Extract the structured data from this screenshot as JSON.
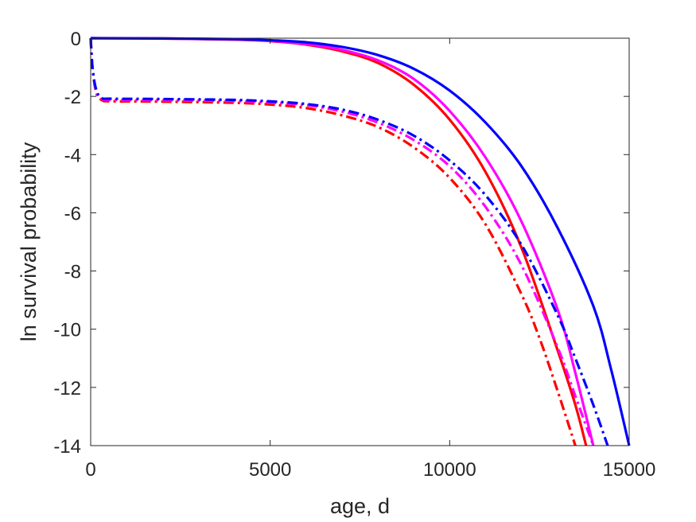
{
  "chart_data": {
    "type": "line",
    "title": "",
    "xlabel": "age, d",
    "ylabel": "ln survival probability",
    "xlim": [
      0,
      15000
    ],
    "ylim": [
      -14,
      0
    ],
    "xticks": [
      0,
      5000,
      10000,
      15000
    ],
    "yticks": [
      0,
      -2,
      -4,
      -6,
      -8,
      -10,
      -12,
      -14
    ],
    "grid": false,
    "legend": "none",
    "box": true,
    "series": [
      {
        "color": "#ff0000",
        "style": "solid",
        "x": [
          0,
          2000,
          4000,
          5000,
          6000,
          7000,
          8000,
          9000,
          10000,
          11000,
          12000,
          13000,
          13500,
          13800
        ],
        "y": [
          0,
          -0.01,
          -0.05,
          -0.1,
          -0.22,
          -0.45,
          -0.85,
          -1.6,
          -2.8,
          -4.6,
          -7.2,
          -10.7,
          -12.6,
          -14
        ]
      },
      {
        "color": "#ff00ff",
        "style": "solid",
        "x": [
          0,
          2000,
          4000,
          5000,
          6000,
          7000,
          8000,
          9000,
          10000,
          11000,
          12000,
          13000,
          13500,
          14000
        ],
        "y": [
          0,
          -0.01,
          -0.04,
          -0.09,
          -0.2,
          -0.4,
          -0.76,
          -1.4,
          -2.5,
          -4.1,
          -6.3,
          -9.3,
          -11.5,
          -14
        ]
      },
      {
        "color": "#0000ff",
        "style": "solid",
        "x": [
          0,
          2000,
          4000,
          5000,
          6000,
          7000,
          8000,
          9000,
          10000,
          11000,
          12000,
          13000,
          14000,
          14500,
          15000
        ],
        "y": [
          0,
          -0.01,
          -0.03,
          -0.07,
          -0.14,
          -0.3,
          -0.58,
          -1.05,
          -1.8,
          -2.9,
          -4.4,
          -6.5,
          -9.2,
          -11.4,
          -14
        ]
      },
      {
        "color": "#ff0000",
        "style": "dashdot",
        "x": [
          0,
          50,
          150,
          300,
          600,
          2000,
          4000,
          5000,
          6000,
          7000,
          8000,
          9000,
          10000,
          11000,
          12000,
          12500,
          13000,
          13500
        ],
        "y": [
          0,
          -1.0,
          -1.85,
          -2.12,
          -2.17,
          -2.18,
          -2.22,
          -2.28,
          -2.4,
          -2.65,
          -3.05,
          -3.75,
          -4.8,
          -6.4,
          -8.8,
          -10.3,
          -12.1,
          -14
        ]
      },
      {
        "color": "#ff00ff",
        "style": "dashdot",
        "x": [
          0,
          50,
          150,
          300,
          600,
          2000,
          4000,
          5000,
          6000,
          7000,
          8000,
          9000,
          10000,
          11000,
          12000,
          13000,
          13500,
          14000
        ],
        "y": [
          0,
          -1.0,
          -1.8,
          -2.08,
          -2.12,
          -2.13,
          -2.16,
          -2.21,
          -2.3,
          -2.52,
          -2.9,
          -3.5,
          -4.4,
          -5.8,
          -7.8,
          -10.6,
          -12.3,
          -14
        ]
      },
      {
        "color": "#0000ff",
        "style": "dashdot",
        "x": [
          0,
          50,
          150,
          300,
          600,
          2000,
          4000,
          5000,
          6000,
          7000,
          8000,
          9000,
          10000,
          11000,
          12000,
          13000,
          13500,
          14000,
          14400
        ],
        "y": [
          0,
          -1.0,
          -1.75,
          -2.05,
          -2.08,
          -2.09,
          -2.12,
          -2.17,
          -2.26,
          -2.45,
          -2.8,
          -3.35,
          -4.2,
          -5.4,
          -7.1,
          -9.5,
          -11.0,
          -12.6,
          -14
        ]
      }
    ]
  }
}
